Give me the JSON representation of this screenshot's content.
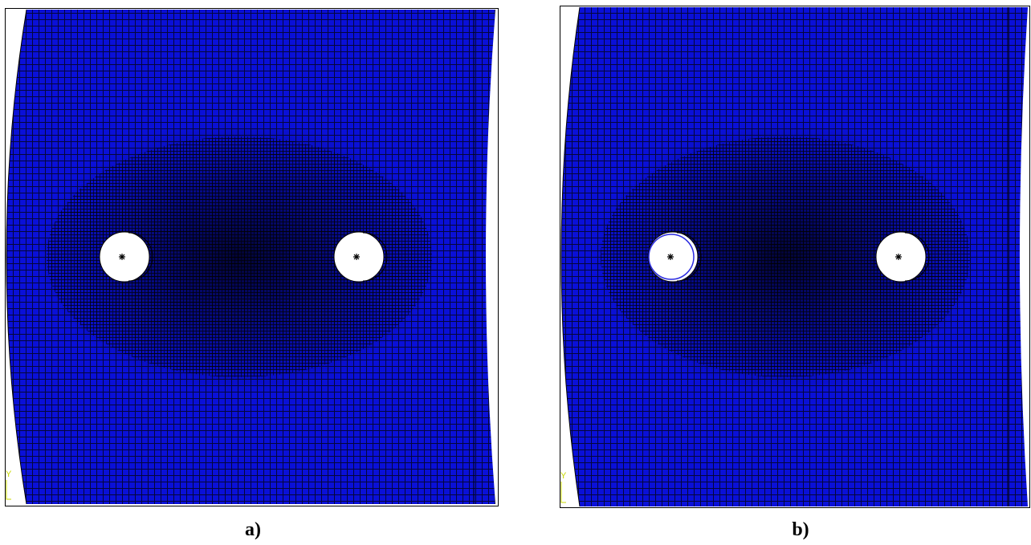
{
  "panels": [
    {
      "caption": "a)",
      "axis_label": "Y"
    },
    {
      "caption": "b)",
      "axis_label": "Y"
    }
  ]
}
